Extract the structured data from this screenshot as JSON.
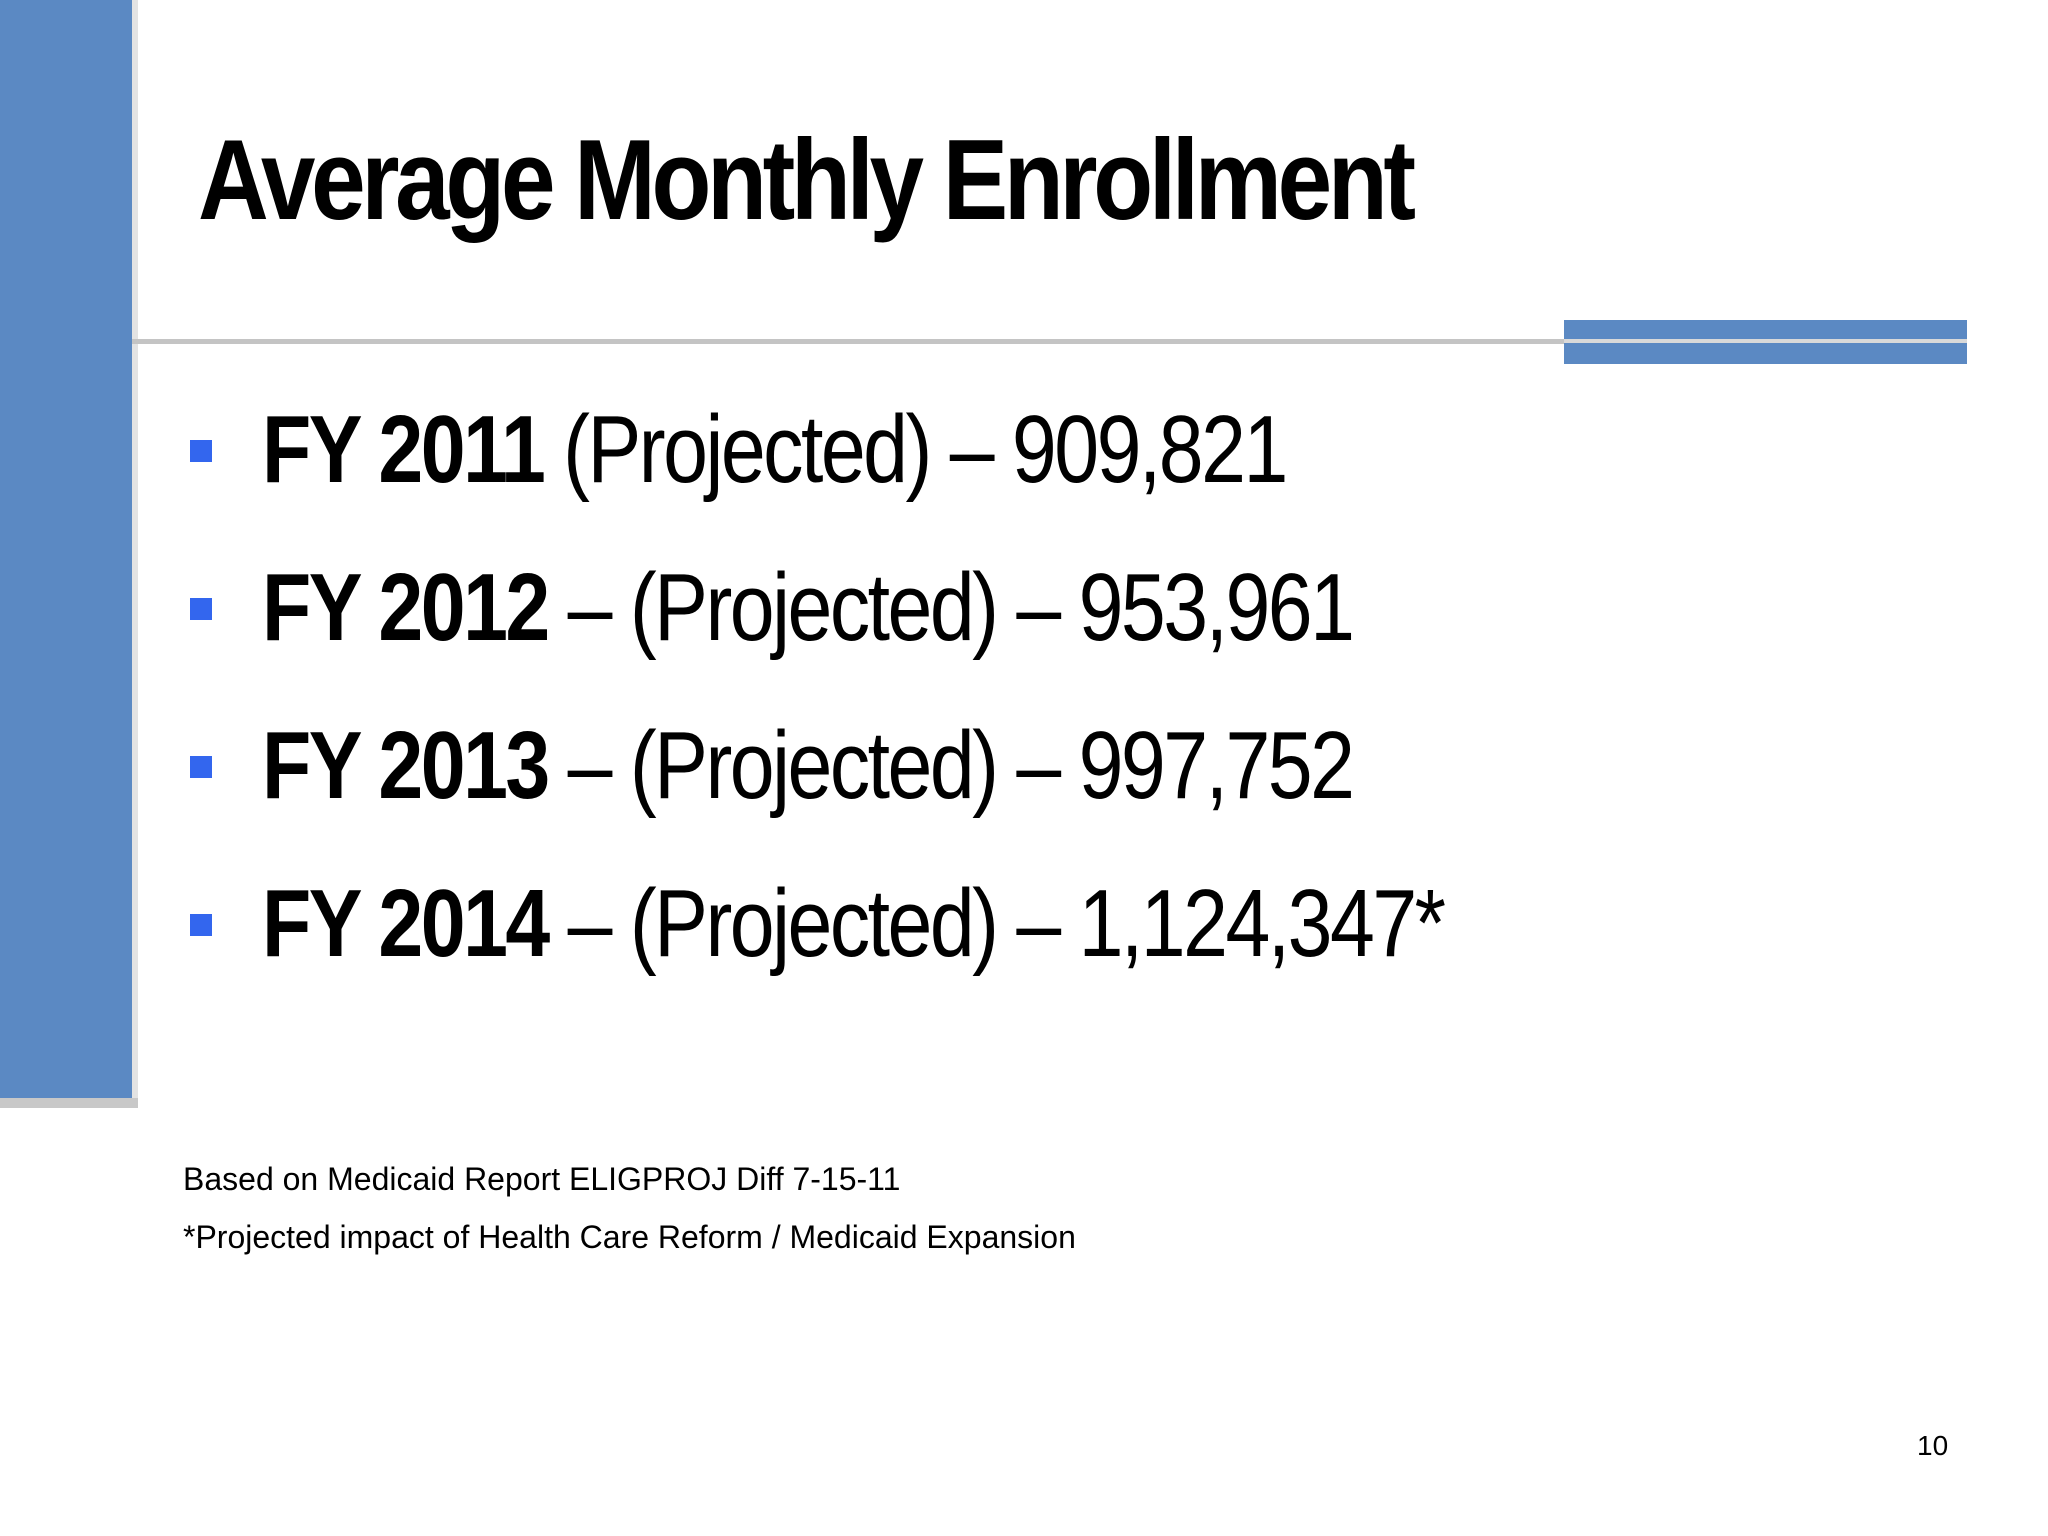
{
  "slide": {
    "title": "Average Monthly Enrollment",
    "bullets": [
      {
        "label": "FY 2011",
        "text": " (Projected) – 909,821"
      },
      {
        "label": "FY 2012",
        "text": " – (Projected) – 953,961"
      },
      {
        "label": "FY 2013",
        "text": " – (Projected) – 997,752"
      },
      {
        "label": "FY 2014",
        "text": " – (Projected) – 1,124,347*"
      }
    ],
    "notes": [
      "Based on Medicaid Report ELIGPROJ Diff 7-15-11",
      "*Projected impact of Health Care Reform / Medicaid Expansion"
    ],
    "page_number": "10"
  },
  "colors": {
    "accent_blue": "#5b89c3",
    "bullet_blue": "#3366ee",
    "rule_gray": "#c4c4c4"
  }
}
